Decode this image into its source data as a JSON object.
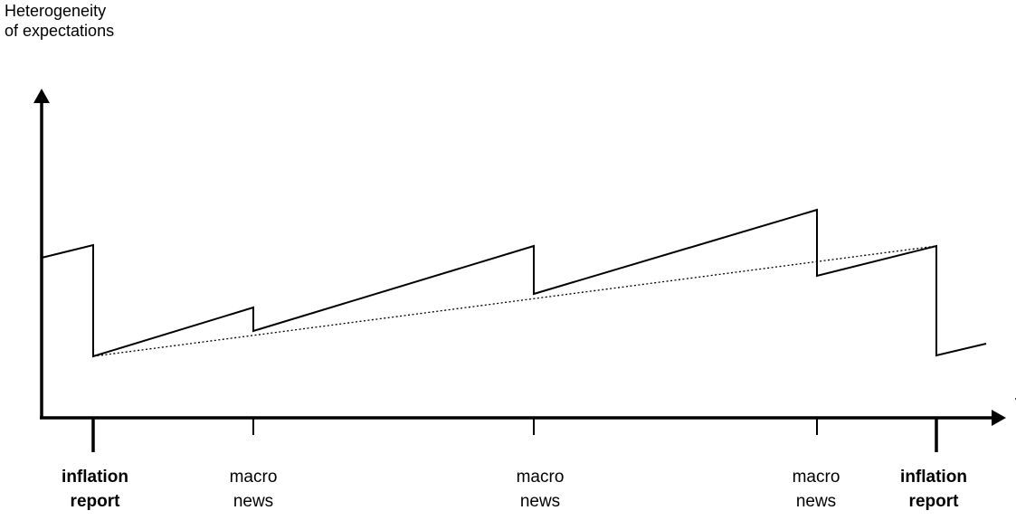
{
  "y_axis_label": {
    "line1": "Heterogeneity",
    "line2": "of expectations"
  },
  "x_axis_events": [
    {
      "line1": "inflation",
      "line2": "report",
      "bold": true
    },
    {
      "line1": "macro",
      "line2": "news",
      "bold": false
    },
    {
      "line1": "macro",
      "line2": "news",
      "bold": false
    },
    {
      "line1": "macro",
      "line2": "news",
      "bold": false
    },
    {
      "line1": "inflation",
      "line2": "report",
      "bold": true
    }
  ],
  "colors": {
    "line": "#000000",
    "background": "#ffffff"
  },
  "styles": {
    "heterogeneity_line": "solid",
    "trend_line": "dotted"
  }
}
